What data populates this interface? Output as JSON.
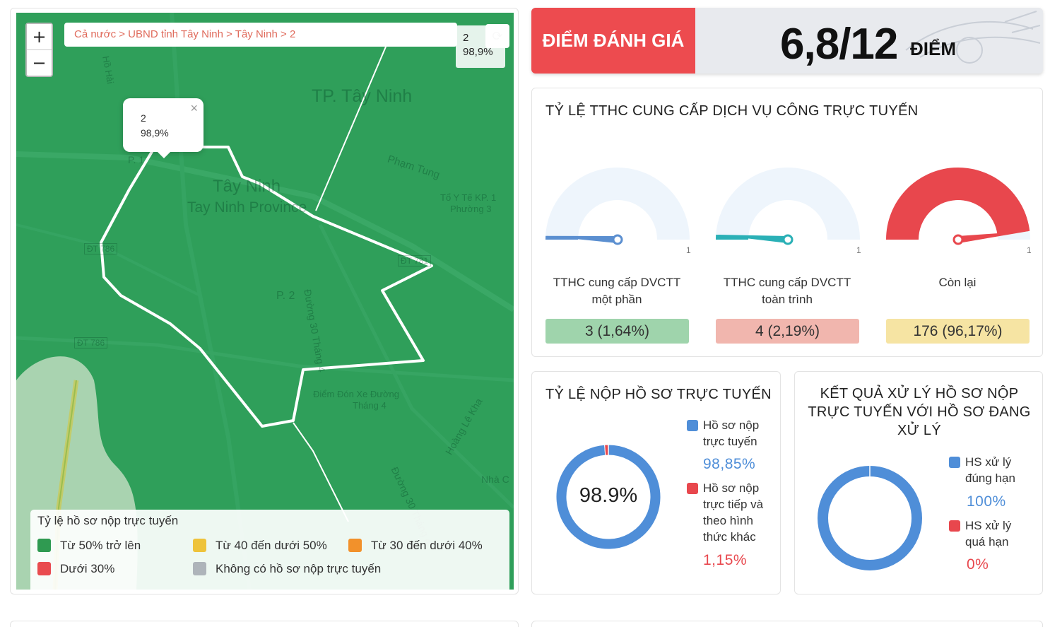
{
  "map": {
    "zoom_in": "+",
    "zoom_out": "−",
    "breadcrumb": [
      "Cả nước",
      "UBND tỉnh Tây Ninh",
      "Tây Ninh",
      "2"
    ],
    "breadcrumb_sep": ">",
    "reload_icon": "refresh-icon",
    "info": {
      "name": "2",
      "value": "98,9%"
    },
    "popup": {
      "name": "2",
      "value": "98,9%",
      "close": "×"
    },
    "labels": {
      "city": "TP. Tây Ninh",
      "town": "Tây Ninh",
      "province": "Tay Ninh Province",
      "street1": "Phạm Tung",
      "poi1a": "Tổ Y Tế KP. 1",
      "poi1b": "Phường 3",
      "road1": "ĐT 786",
      "road2": "ĐT 786",
      "road3": "ĐT 781",
      "ward": "P. 2",
      "street2": "Đường 30 Tháng 4",
      "poi2a": "Điểm Đón Xe Đường",
      "poi2b": "Tháng 4",
      "street3": "Hoàng Lê Kha",
      "street4": "Đường 30 Tháng 4",
      "poi3": "Nhà C",
      "road4": "Hồ Hải",
      "ward2": "P. 1"
    },
    "legend": {
      "title": "Tỷ lệ hồ sơ nộp trực tuyến",
      "items": [
        {
          "label": "Từ 50% trở lên",
          "color": "#2f9a51"
        },
        {
          "label": "Từ 40 đến dưới 50%",
          "color": "#eec33b"
        },
        {
          "label": "Từ 30 đến dưới 40%",
          "color": "#f2912b"
        },
        {
          "label": "Dưới 30%",
          "color": "#e94b4f"
        },
        {
          "label": "Không có hồ sơ nộp trực tuyến",
          "color": "#aeb4ba"
        }
      ]
    }
  },
  "score": {
    "label": "ĐIỂM ĐÁNH GIÁ",
    "value": "6,8/12",
    "unit": "ĐIỂM"
  },
  "dvc": {
    "title": "TỶ LỆ TTHC CUNG CẤP DỊCH VỤ CÔNG TRỰC TUYẾN",
    "gauges": [
      {
        "label": "TTHC cung cấp DVCTT một phần",
        "value": "3 (1,64%)",
        "fraction": 0.0164,
        "color": "#5b8fd0",
        "box": "#9fd4ac",
        "max": "1"
      },
      {
        "label": "TTHC cung cấp DVCTT toàn trình",
        "value": "4 (2,19%)",
        "fraction": 0.0219,
        "color": "#2ab0b6",
        "box": "#f1b6ae",
        "max": "1"
      },
      {
        "label": "Còn lại",
        "value": "176 (96,17%)",
        "fraction": 0.9617,
        "color": "#e8474d",
        "box": "#f6e4a3",
        "max": "1"
      }
    ]
  },
  "nop": {
    "title": "TỶ LỆ NỘP HỒ SƠ TRỰC TUYẾN",
    "center": "98.9%",
    "items": [
      {
        "label": "Hồ sơ nộp trực tuyến",
        "pct": "98,85%",
        "value": 98.85,
        "color": "#4f8ed8"
      },
      {
        "label": "Hồ sơ nộp trực tiếp và theo hình thức khác",
        "pct": "1,15%",
        "value": 1.15,
        "color": "#e8474d"
      }
    ]
  },
  "kq": {
    "title": "KẾT QUẢ XỬ LÝ HỒ SƠ NỘP TRỰC TUYẾN VỚI HỒ SƠ ĐANG XỬ LÝ",
    "items": [
      {
        "label": "HS xử lý đúng hạn",
        "pct": "100%",
        "value": 100,
        "color": "#4f8ed8"
      },
      {
        "label": "HS xử lý quá hạn",
        "pct": "0%",
        "value": 0,
        "color": "#e8474d"
      }
    ]
  }
}
